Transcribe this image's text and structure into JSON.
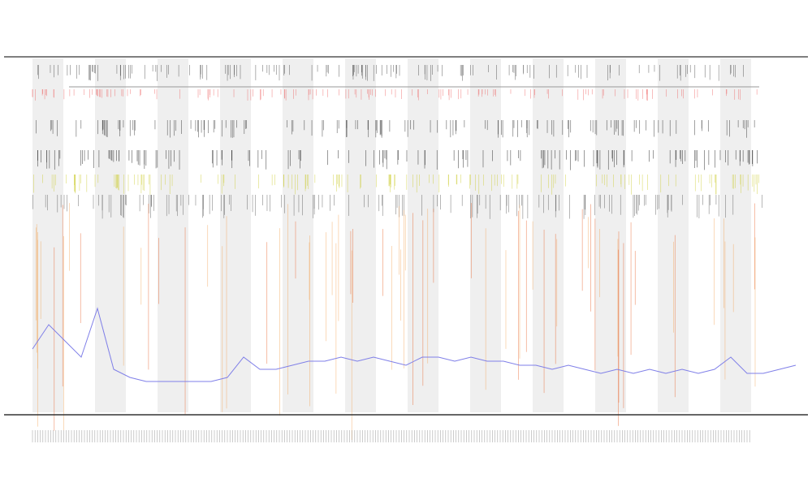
{
  "chart_data": {
    "type": "line",
    "color": "#7f7fe8",
    "values": [
      81,
      111,
      91,
      71,
      131,
      56,
      46,
      41,
      41,
      41,
      41,
      41,
      46,
      71,
      56,
      56,
      61,
      66,
      66,
      71,
      66,
      71,
      66,
      61,
      71,
      71,
      66,
      71,
      66,
      66,
      61,
      61,
      56,
      61,
      56,
      51,
      56,
      51,
      56,
      51,
      56,
      51,
      56,
      71,
      51,
      51,
      56,
      61
    ]
  }
}
